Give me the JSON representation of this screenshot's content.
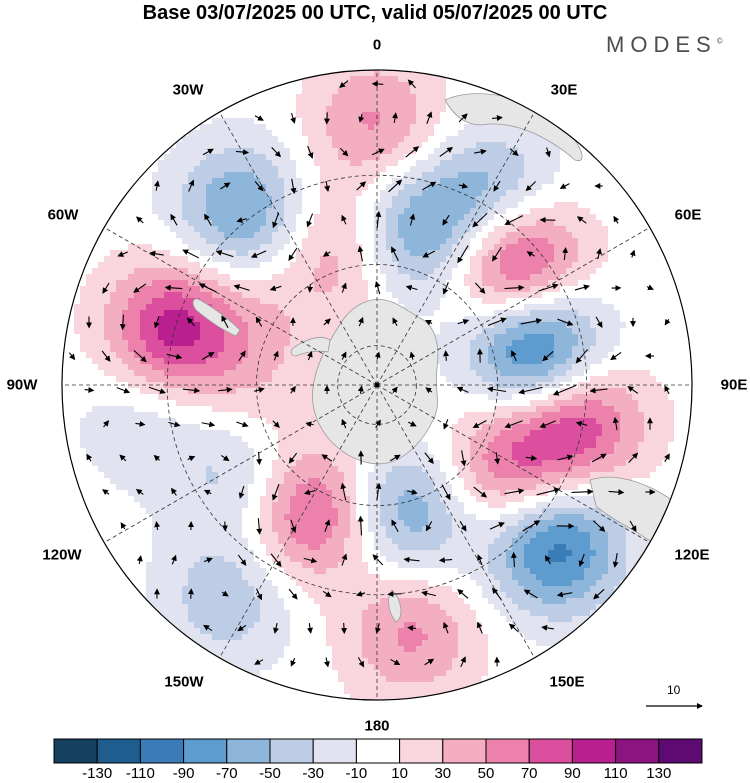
{
  "header": {
    "title": "Base 03/07/2025 00 UTC, valid 05/07/2025 00 UTC",
    "brand": "MODES",
    "brand_mark": "©"
  },
  "map": {
    "projection": "south polar stereographic",
    "longitude_labels": [
      "0",
      "30E",
      "60E",
      "90E",
      "120E",
      "150E",
      "180",
      "150W",
      "120W",
      "90W",
      "60W",
      "30W"
    ],
    "anomaly_centers": [
      {
        "lon": 0,
        "lat": -30,
        "value": 55
      },
      {
        "lon": 12,
        "lat": -52,
        "value": -85
      },
      {
        "lon": 32,
        "lat": -38,
        "value": -70
      },
      {
        "lon": 48,
        "lat": -45,
        "value": 115
      },
      {
        "lon": 78,
        "lat": -50,
        "value": -125
      },
      {
        "lon": 100,
        "lat": -42,
        "value": 95
      },
      {
        "lon": 124,
        "lat": -52,
        "value": 70
      },
      {
        "lon": 132,
        "lat": -34,
        "value": -105
      },
      {
        "lon": 167,
        "lat": -58,
        "value": -75
      },
      {
        "lon": 172,
        "lat": -32,
        "value": 55
      },
      {
        "lon": -152,
        "lat": -55,
        "value": 95
      },
      {
        "lon": -125,
        "lat": -52,
        "value": -55
      },
      {
        "lon": -145,
        "lat": -30,
        "value": -45
      },
      {
        "lon": -98,
        "lat": -35,
        "value": -30
      },
      {
        "lon": -75,
        "lat": -40,
        "value": 100
      },
      {
        "lon": -38,
        "lat": -38,
        "value": -75
      },
      {
        "lon": -12,
        "lat": -55,
        "value": 60
      },
      {
        "lon": -105,
        "lat": -60,
        "value": 25
      },
      {
        "lon": -60,
        "lat": -58,
        "value": 20
      }
    ],
    "vector_scale_label": "10"
  },
  "colorbar": {
    "levels": [
      -150,
      -130,
      -110,
      -90,
      -70,
      -50,
      -30,
      -10,
      10,
      30,
      50,
      70,
      90,
      110,
      130,
      150
    ],
    "labels": [
      "-130",
      "-110",
      "-90",
      "-70",
      "-50",
      "-30",
      "-10",
      "10",
      "30",
      "50",
      "70",
      "90",
      "110",
      "130"
    ],
    "colors": [
      "#15405e",
      "#1e5d8e",
      "#3a7cb8",
      "#5e9bce",
      "#8eb5da",
      "#bccde5",
      "#e1e4f0",
      "#ffffff",
      "#f9d6dd",
      "#f4aec2",
      "#ec82ab",
      "#dc4f9e",
      "#b91f8e",
      "#8b147f",
      "#5d0a73"
    ]
  },
  "colors": {
    "land": "#e6e6e6",
    "coast": "#9a9a9a",
    "grid": "#333333",
    "vector": "#000000"
  }
}
